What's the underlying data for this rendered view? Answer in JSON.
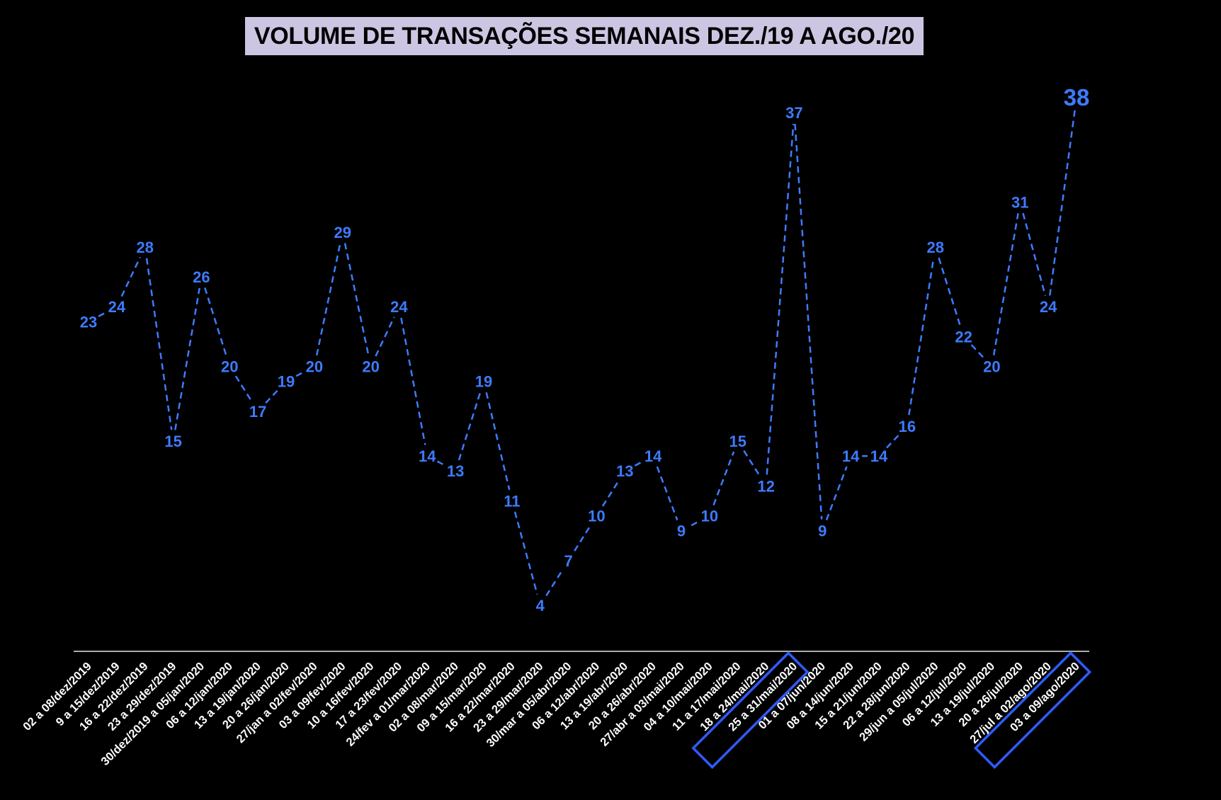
{
  "chart_data": {
    "type": "line",
    "title": "VOLUME DE TRANSAÇÕES SEMANAIS DEZ./19 A AGO./20",
    "xlabel": "",
    "ylabel": "",
    "grid": false,
    "legend": "none",
    "categories": [
      "02 a 08/dez/2019",
      "9 a 15/dez/2019",
      "16 a 22/dez/2019",
      "23 a 29/dez/2019",
      "30/dez/2019 a 05/jan/2020",
      "06 a 12/jan/2020",
      "13 a 19/jan/2020",
      "20 a 26/jan/2020",
      "27/jan a 02/fev/2020",
      "03 a 09/fev/2020",
      "10 a 16/fev/2020",
      "17 a 23/fev/2020",
      "24/fev a 01/mar/2020",
      "02 a 08/mar/2020",
      "09 a 15/mar/2020",
      "16 a 22/mar/2020",
      "23 a 29/mar/2020",
      "30/mar a 05/abr/2020",
      "06 a 12/abr/2020",
      "13 a 19/abr/2020",
      "20 a 26/abr/2020",
      "27/abr a 03/mai/2020",
      "04 a 10/mai/2020",
      "11 a 17/mai/2020",
      "18 a 24/mai/2020",
      "25 a 31/mai/2020",
      "01 a 07/jun/2020",
      "08 a 14/jun/2020",
      "15 a 21/jun/2020",
      "22 a 28/jun/2020",
      "29/jun a 05/jul/2020",
      "06 a 12/jul/2020",
      "13 a 19/jul/2020",
      "20 a 26/jul/2020",
      "27/jul a 02/ago/2020",
      "03 a 09/ago/2020"
    ],
    "series": [
      {
        "values": [
          23,
          24,
          28,
          15,
          26,
          20,
          17,
          19,
          20,
          29,
          20,
          24,
          14,
          13,
          19,
          11,
          4,
          7,
          10,
          13,
          14,
          9,
          10,
          15,
          12,
          37,
          9,
          14,
          14,
          16,
          28,
          22,
          20,
          31,
          24,
          38
        ],
        "color": "#3d7bff"
      }
    ],
    "highlighted_categories": [
      "25 a 31/mai/2020",
      "03 a 09/ago/2020"
    ],
    "highlight_color": "#2f5bff",
    "emphasized_value_index": 35
  }
}
